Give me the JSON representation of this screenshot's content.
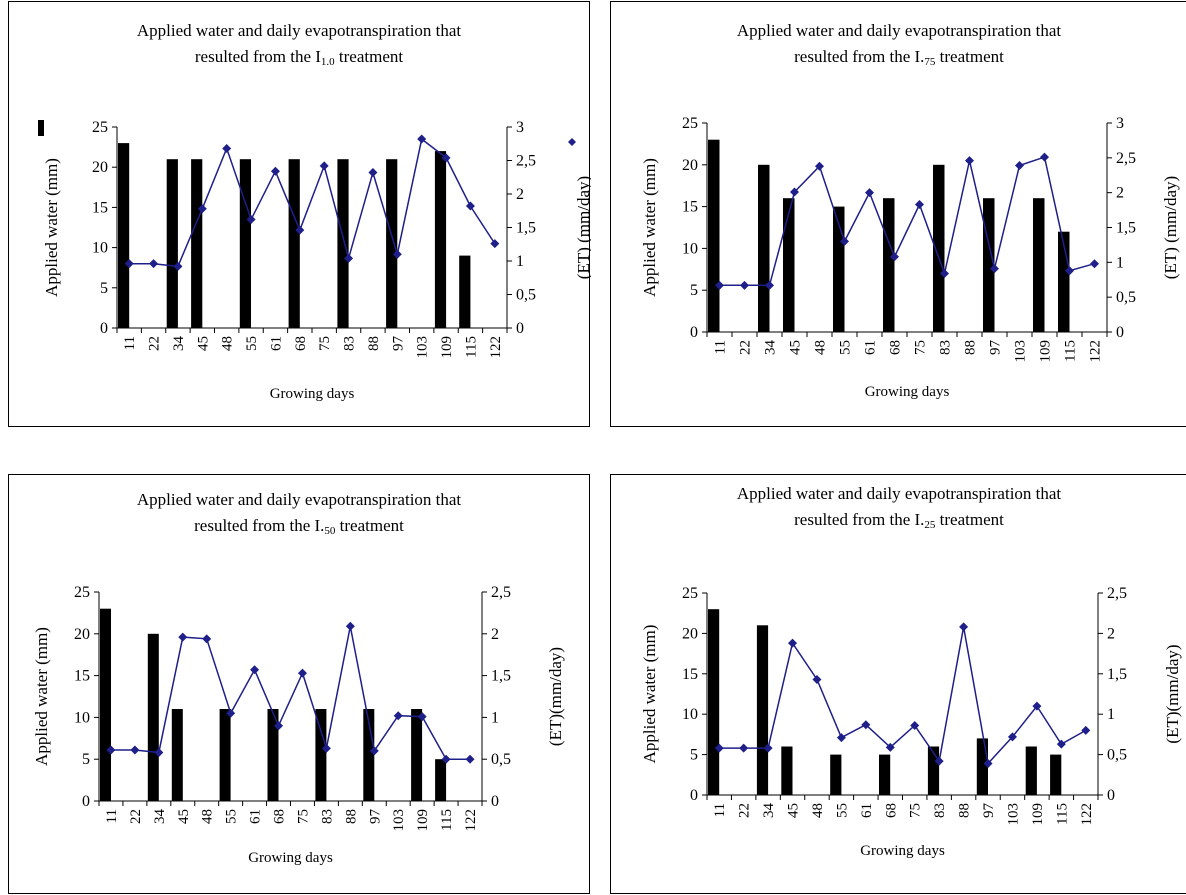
{
  "colors": {
    "bar": "#000000",
    "line": "#1f1f8a",
    "marker": "#1f1f8a"
  },
  "chart_data": [
    {
      "type": "bar",
      "title_line1": "Applied water and daily evapotranspiration that",
      "title_pre": "resulted from the I",
      "title_sub": "1.0",
      "title_post": " treatment",
      "xlabel": "Growing days",
      "ylabel": "Applied water (mm)",
      "y2label": "(ET) (mm/day)",
      "categories": [
        "11",
        "22",
        "34",
        "45",
        "48",
        "55",
        "61",
        "68",
        "75",
        "83",
        "88",
        "97",
        "103",
        "109",
        "115",
        "122"
      ],
      "ylim": [
        0,
        25
      ],
      "y2lim": [
        0,
        3
      ],
      "yticks": [
        "0",
        "5",
        "10",
        "15",
        "20",
        "25"
      ],
      "y2ticks": [
        "0",
        "0,5",
        "1",
        "1,5",
        "2",
        "2,5",
        "3"
      ],
      "legend_markers": true,
      "series": [
        {
          "type": "bar",
          "values": [
            23,
            0,
            21,
            21,
            0,
            21,
            0,
            21,
            0,
            21,
            0,
            21,
            0,
            22,
            9,
            0
          ]
        },
        {
          "type": "line",
          "axis": "right",
          "values": [
            0.96,
            0.96,
            0.92,
            1.78,
            2.68,
            1.62,
            2.34,
            1.46,
            2.42,
            1.04,
            2.32,
            1.1,
            2.82,
            2.54,
            1.82,
            1.26
          ]
        }
      ]
    },
    {
      "type": "bar",
      "title_line1": "Applied water and daily evapotranspiration that",
      "title_pre": "resulted from the I.",
      "title_sub": "75",
      "title_post": " treatment",
      "xlabel": "Growing days",
      "ylabel": "Applied water (mm)",
      "y2label": "(ET) (mm/day)",
      "categories": [
        "11",
        "22",
        "34",
        "45",
        "48",
        "55",
        "61",
        "68",
        "75",
        "83",
        "88",
        "97",
        "103",
        "109",
        "115",
        "122"
      ],
      "ylim": [
        0,
        25
      ],
      "y2lim": [
        0,
        3
      ],
      "yticks": [
        "0",
        "5",
        "10",
        "15",
        "20",
        "25"
      ],
      "y2ticks": [
        "0",
        "0,5",
        "1",
        "1,5",
        "2",
        "2,5",
        "3"
      ],
      "legend_markers": false,
      "series": [
        {
          "type": "bar",
          "values": [
            23,
            0,
            20,
            16,
            0,
            15,
            0,
            16,
            0,
            20,
            0,
            16,
            0,
            16,
            12,
            0
          ]
        },
        {
          "type": "line",
          "axis": "right",
          "values": [
            0.67,
            0.67,
            0.67,
            2.01,
            2.38,
            1.3,
            2.0,
            1.08,
            1.83,
            0.84,
            2.46,
            0.91,
            2.39,
            2.51,
            0.88,
            0.98
          ]
        }
      ]
    },
    {
      "type": "bar",
      "title_line1": "Applied water and daily evapotranspiration that",
      "title_pre": "resulted from the I.",
      "title_sub": "50",
      "title_post": " treatment",
      "xlabel": "Growing days",
      "ylabel": "Applied water (mm)",
      "y2label": "(ET)(mm/day)",
      "categories": [
        "11",
        "22",
        "34",
        "45",
        "48",
        "55",
        "61",
        "68",
        "75",
        "83",
        "88",
        "97",
        "103",
        "109",
        "115",
        "122"
      ],
      "ylim": [
        0,
        25
      ],
      "y2lim": [
        0,
        2.5
      ],
      "yticks": [
        "0",
        "5",
        "10",
        "15",
        "20",
        "25"
      ],
      "y2ticks": [
        "0",
        "0,5",
        "1",
        "1,5",
        "2",
        "2,5"
      ],
      "legend_markers": false,
      "series": [
        {
          "type": "bar",
          "values": [
            23,
            0,
            20,
            11,
            0,
            11,
            0,
            11,
            0,
            11,
            0,
            11,
            0,
            11,
            5,
            0
          ]
        },
        {
          "type": "line",
          "axis": "right",
          "values": [
            0.61,
            0.61,
            0.58,
            1.96,
            1.94,
            1.05,
            1.57,
            0.9,
            1.53,
            0.63,
            2.09,
            0.6,
            1.02,
            1.01,
            0.5,
            0.5
          ]
        }
      ]
    },
    {
      "type": "bar",
      "title_line1": "Applied water and daily evapotranspiration that",
      "title_pre": "resulted from the I.",
      "title_sub": "25",
      "title_post": " treatment",
      "xlabel": "Growing days",
      "ylabel": "Applied water (mm)",
      "y2label": "(ET)(mm/day)",
      "categories": [
        "11",
        "22",
        "34",
        "45",
        "48",
        "55",
        "61",
        "68",
        "75",
        "83",
        "88",
        "97",
        "103",
        "109",
        "115",
        "122"
      ],
      "ylim": [
        0,
        25
      ],
      "y2lim": [
        0,
        2.5
      ],
      "yticks": [
        "0",
        "5",
        "10",
        "15",
        "20",
        "25"
      ],
      "y2ticks": [
        "0",
        "0,5",
        "1",
        "1,5",
        "2",
        "2,5"
      ],
      "legend_markers": false,
      "series": [
        {
          "type": "bar",
          "values": [
            23,
            0,
            21,
            6,
            0,
            5,
            0,
            5,
            0,
            6,
            0,
            7,
            0,
            6,
            5,
            0
          ]
        },
        {
          "type": "line",
          "axis": "right",
          "values": [
            0.58,
            0.58,
            0.58,
            1.88,
            1.43,
            0.71,
            0.87,
            0.59,
            0.86,
            0.42,
            2.08,
            0.39,
            0.72,
            1.1,
            0.63,
            0.8
          ]
        }
      ]
    }
  ]
}
